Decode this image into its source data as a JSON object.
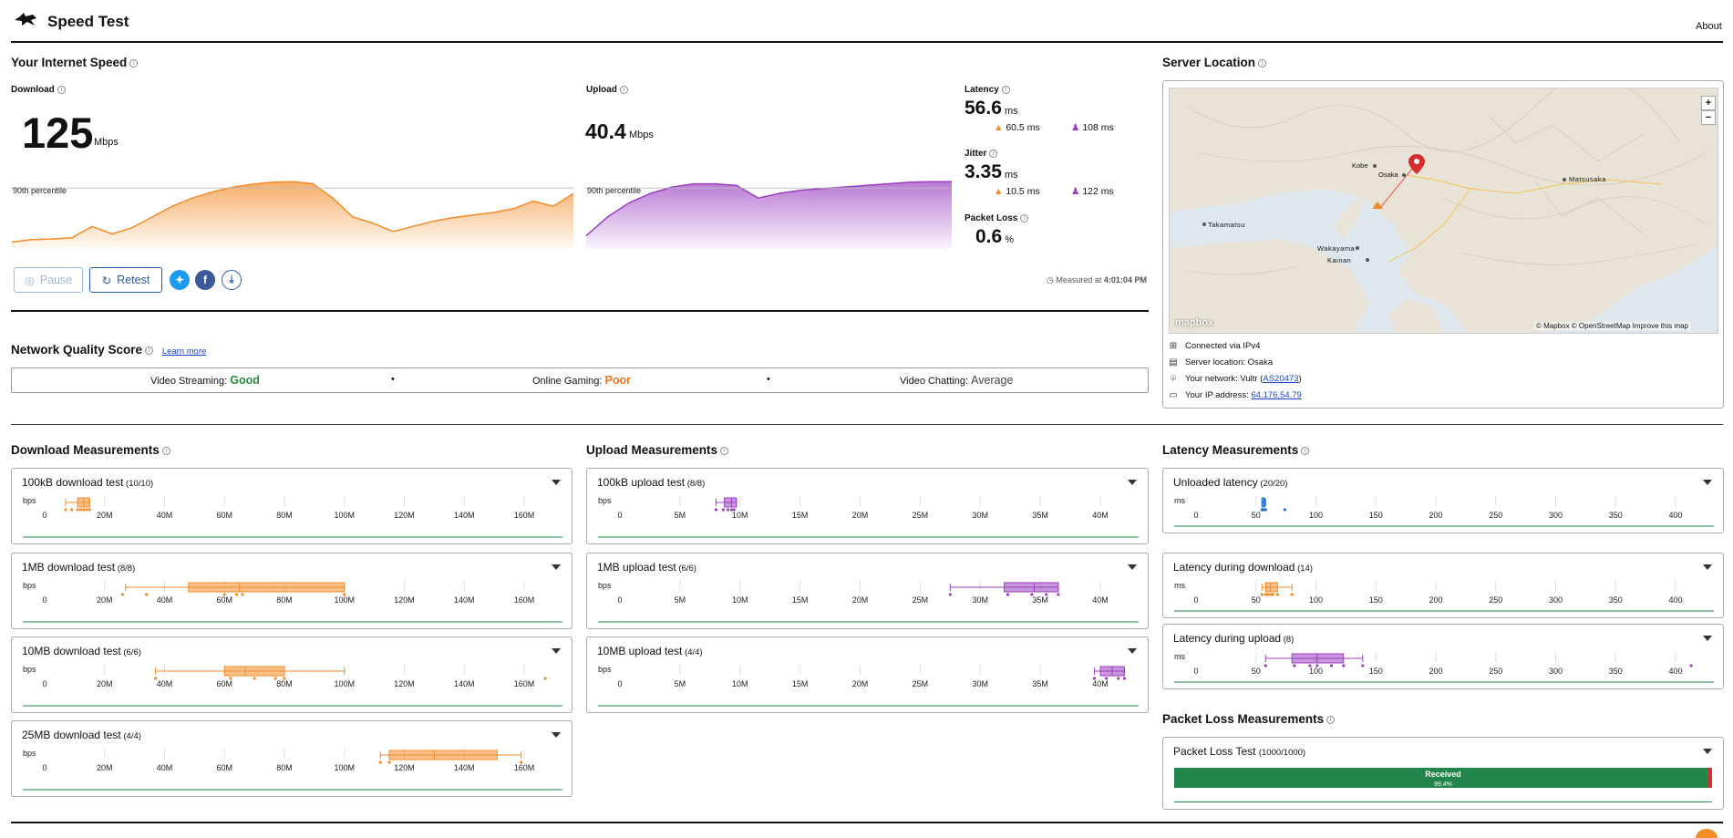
{
  "header": {
    "title": "Speed Test",
    "about": "About"
  },
  "speed": {
    "section_title": "Your Internet Speed",
    "download": {
      "label": "Download",
      "value": "125",
      "unit": "Mbps",
      "percentile_label": "90th percentile"
    },
    "upload": {
      "label": "Upload",
      "value": "40.4",
      "unit": "Mbps",
      "percentile_label": "90th percentile"
    },
    "latency": {
      "label": "Latency",
      "value": "56.6",
      "unit": "ms",
      "down": "60.5",
      "down_unit": "ms",
      "up": "108",
      "up_unit": "ms"
    },
    "jitter": {
      "label": "Jitter",
      "value": "3.35",
      "unit": "ms",
      "down": "10.5",
      "down_unit": "ms",
      "up": "122",
      "up_unit": "ms"
    },
    "packet_loss": {
      "label": "Packet Loss",
      "value": "0.6",
      "unit": "%"
    },
    "pause_label": "Pause",
    "retest_label": "Retest",
    "measured_prefix": "Measured at",
    "measured_time": "4:01:04 PM"
  },
  "nqs": {
    "title": "Network Quality Score",
    "learn_more": "Learn more",
    "items": [
      {
        "label": "Video Streaming:",
        "value": "Good",
        "color": "#2a8a3e"
      },
      {
        "label": "Online Gaming:",
        "value": "Poor",
        "color": "#e8761c"
      },
      {
        "label": "Video Chatting:",
        "value": "Average",
        "color": "#444444"
      }
    ],
    "separator": "•"
  },
  "server": {
    "title": "Server Location",
    "map_labels": {
      "kobe": "Kobe",
      "osaka": "Osaka",
      "matsusaka": "Matsusaka",
      "takamatsu": "Takamatsu",
      "wakayama": "Wakayama",
      "kainan": "Kainan",
      "mapbox": "mapbox",
      "attribution": "© Mapbox © OpenStreetMap",
      "improve": "Improve this map",
      "zoom_in": "+",
      "zoom_out": "−"
    },
    "connected": "Connected via IPv4",
    "location": "Server location: Osaka",
    "network_prefix": "Your network: Vultr (",
    "network_as": "AS20473",
    "network_suffix": ")",
    "ip_prefix": "Your IP address:",
    "ip": "64.176.54.79"
  },
  "download_measurements": {
    "title": "Download Measurements",
    "unit": "bps",
    "ticks": [
      "0",
      "20M",
      "40M",
      "60M",
      "80M",
      "100M",
      "120M",
      "140M",
      "160M"
    ],
    "tests": [
      {
        "name": "100kB download test",
        "count": "(10/10)"
      },
      {
        "name": "1MB download test",
        "count": "(8/8)"
      },
      {
        "name": "10MB download test",
        "count": "(6/6)"
      },
      {
        "name": "25MB download test",
        "count": "(4/4)"
      }
    ]
  },
  "upload_measurements": {
    "title": "Upload Measurements",
    "unit": "bps",
    "ticks": [
      "0",
      "5M",
      "10M",
      "15M",
      "20M",
      "25M",
      "30M",
      "35M",
      "40M"
    ],
    "tests": [
      {
        "name": "100kB upload test",
        "count": "(8/8)"
      },
      {
        "name": "1MB upload test",
        "count": "(6/6)"
      },
      {
        "name": "10MB upload test",
        "count": "(4/4)"
      }
    ]
  },
  "latency_measurements": {
    "title": "Latency Measurements",
    "unit": "ms",
    "ticks": [
      "0",
      "50",
      "100",
      "150",
      "200",
      "250",
      "300",
      "350",
      "400"
    ],
    "tests": [
      {
        "name": "Unloaded latency",
        "count": "(20/20)"
      },
      {
        "name": "Latency during download",
        "count": "(14)"
      },
      {
        "name": "Latency during upload",
        "count": "(8)"
      }
    ]
  },
  "packet_loss_measurements": {
    "title": "Packet Loss Measurements",
    "test_name": "Packet Loss Test",
    "test_count": "(1000/1000)",
    "received_label": "Received",
    "received_pct": "99.4%",
    "received_fraction": 0.994
  },
  "colors": {
    "download": "#f28c28",
    "upload": "#9b3fc1",
    "latency_box": "#2a6fd0",
    "good": "#2a8a3e"
  },
  "chart_data": [
    {
      "type": "area",
      "title": "Download",
      "series": [
        {
          "name": "Download throughput (Mbps)",
          "values": [
            5,
            9,
            10,
            12,
            30,
            18,
            28,
            45,
            62,
            75,
            85,
            92,
            97,
            100,
            101,
            98,
            75,
            45,
            35,
            22,
            30,
            38,
            44,
            48,
            52,
            58,
            70,
            62,
            82
          ]
        }
      ],
      "ylabel": "Mbps"
    },
    {
      "type": "area",
      "title": "Upload",
      "series": [
        {
          "name": "Upload throughput (Mbps)",
          "values": [
            6,
            18,
            27,
            33,
            37,
            39,
            39,
            38,
            30,
            33,
            35,
            36,
            37,
            38,
            39,
            40,
            40.4,
            40.4
          ]
        }
      ],
      "ylabel": "Mbps"
    },
    {
      "type": "boxplot",
      "title": "Download Measurements",
      "unit": "bps",
      "xlim": [
        0,
        175
      ],
      "series": [
        {
          "name": "100kB download test",
          "min": 7,
          "q1": 11,
          "median": 13,
          "q3": 15,
          "max": 15,
          "points": [
            7,
            9,
            11,
            12,
            13,
            14,
            15
          ]
        },
        {
          "name": "1MB download test",
          "min": 27,
          "q1": 48,
          "median": 65,
          "q3": 100,
          "max": 100,
          "points": [
            26,
            34,
            60,
            64,
            66,
            100
          ]
        },
        {
          "name": "10MB download test",
          "min": 37,
          "q1": 60,
          "median": 67,
          "q3": 80,
          "max": 100,
          "points": [
            37,
            62,
            70,
            77,
            80,
            167
          ]
        },
        {
          "name": "25MB download test",
          "min": 112,
          "q1": 115,
          "median": 130,
          "q3": 151,
          "max": 159,
          "points": [
            112,
            115,
            159
          ]
        }
      ]
    },
    {
      "type": "boxplot",
      "title": "Upload Measurements",
      "unit": "bps",
      "xlim": [
        0,
        44
      ],
      "series": [
        {
          "name": "100kB upload test",
          "min": 8,
          "q1": 8.7,
          "median": 9.3,
          "q3": 9.7,
          "max": 9.7,
          "points": [
            8,
            8.6,
            9,
            9.3,
            9.5
          ]
        },
        {
          "name": "1MB upload test",
          "min": 27.5,
          "q1": 32,
          "median": 34.5,
          "q3": 36.5,
          "max": 36.5,
          "points": [
            27.5,
            32.3,
            34.3,
            35.5,
            36.5
          ]
        },
        {
          "name": "10MB upload test",
          "min": 39.5,
          "q1": 40,
          "median": 41,
          "q3": 42,
          "max": 42,
          "points": [
            39.5,
            40.5,
            41.5,
            42
          ]
        }
      ]
    },
    {
      "type": "boxplot",
      "title": "Latency Measurements",
      "unit": "ms",
      "xlim": [
        0,
        440
      ],
      "series": [
        {
          "name": "Unloaded latency",
          "min": 55,
          "q1": 55,
          "median": 56.6,
          "q3": 57,
          "max": 58,
          "points": [
            55,
            56,
            57,
            58,
            74
          ]
        },
        {
          "name": "Latency during download",
          "min": 55,
          "q1": 58,
          "median": 62,
          "q3": 68,
          "max": 80,
          "points": [
            55,
            58,
            60,
            62,
            64,
            68,
            80
          ]
        },
        {
          "name": "Latency during upload",
          "min": 58,
          "q1": 80,
          "median": 101,
          "q3": 123,
          "max": 139,
          "points": [
            58,
            82,
            95,
            101,
            113,
            123,
            139,
            413
          ]
        }
      ]
    }
  ]
}
